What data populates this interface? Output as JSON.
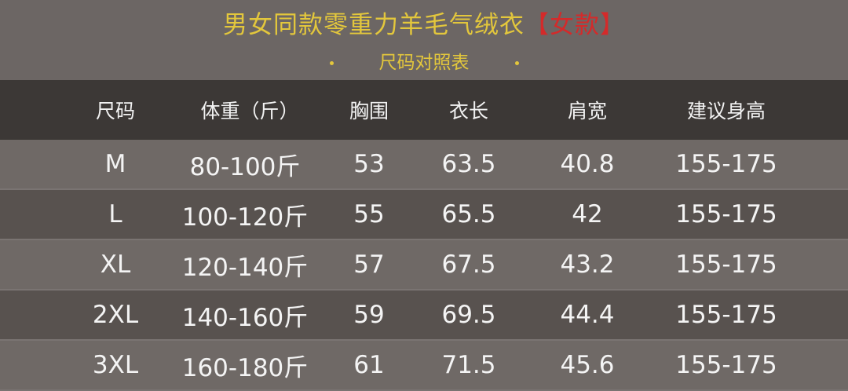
{
  "title": {
    "main": "男女同款零重力羊毛气绒衣",
    "tag": "【女款】"
  },
  "subtitle": "尺码对照表",
  "colors": {
    "title": "#e3c73c",
    "tag": "#d42a2a",
    "header_bg": "#3c3836"
  },
  "table": {
    "headers": [
      "尺码",
      "体重（斤）",
      "胸围",
      "衣长",
      "肩宽",
      "建议身高"
    ],
    "rows": [
      [
        "M",
        "80-100斤",
        "53",
        "63.5",
        "40.8",
        "155-175"
      ],
      [
        "L",
        "100-120斤",
        "55",
        "65.5",
        "42",
        "155-175"
      ],
      [
        "XL",
        "120-140斤",
        "57",
        "67.5",
        "43.2",
        "155-175"
      ],
      [
        "2XL",
        "140-160斤",
        "59",
        "69.5",
        "44.4",
        "155-175"
      ],
      [
        "3XL",
        "160-180斤",
        "61",
        "71.5",
        "45.6",
        "155-175"
      ]
    ]
  }
}
